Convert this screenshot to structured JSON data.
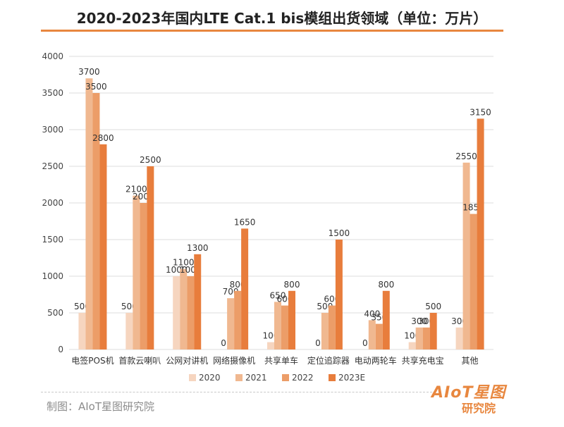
{
  "chart_data": {
    "type": "bar",
    "title": "2020-2023年国内LTE Cat.1 bis模组出货领域（单位：万片）",
    "categories": [
      "电签POS机",
      "首款云喇叭",
      "公网对讲机",
      "网络摄像机",
      "共享单车",
      "定位追踪器",
      "电动两轮车",
      "共享充电宝",
      "其他"
    ],
    "series": [
      {
        "name": "2020",
        "color": "#f6d5bf",
        "values": [
          500,
          500,
          1000,
          0,
          100,
          0,
          0,
          100,
          300
        ]
      },
      {
        "name": "2021",
        "color": "#f0b890",
        "values": [
          3700,
          2100,
          1100,
          700,
          650,
          500,
          400,
          300,
          2550
        ]
      },
      {
        "name": "2022",
        "color": "#ec9d68",
        "values": [
          3500,
          2000,
          1000,
          800,
          600,
          600,
          350,
          300,
          1850
        ]
      },
      {
        "name": "2023E",
        "color": "#e87d3c",
        "values": [
          2800,
          2500,
          1300,
          1650,
          800,
          1500,
          800,
          500,
          3150
        ]
      }
    ],
    "ylim": [
      0,
      4000
    ],
    "yticks": [
      0,
      500,
      1000,
      1500,
      2000,
      2500,
      3000,
      3500,
      4000
    ],
    "grid": true,
    "legend_position": "bottom"
  },
  "footer": {
    "source": "制图：AIoT星图研究院",
    "logo_top": "AIoT星图",
    "logo_bottom": "研究院"
  }
}
